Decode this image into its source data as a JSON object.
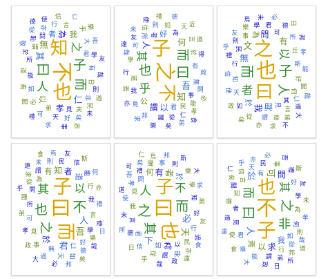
{
  "colors": {
    "page_background": "#ffffff",
    "card_background": "#ffffff",
    "card_border": "#d9d9d9",
    "palette": [
      "#1a1acc",
      "#2e8b2e",
      "#d9a300",
      "#3a6fd6",
      "#6b8e23"
    ]
  },
  "clouds": [
    {
      "id": "cloud-1",
      "words": [
        "不",
        "也",
        "知",
        "曰",
        "子",
        "而",
        "人",
        "之",
        "其",
        "無",
        "仁",
        "孝",
        "以",
        "為",
        "者",
        "我",
        "君",
        "見",
        "弟",
        "能",
        "有",
        "日",
        "如",
        "所",
        "謂",
        "問",
        "非",
        "夫",
        "大",
        "天",
        "言",
        "學",
        "好",
        "必",
        "行",
        "則",
        "道",
        "恥",
        "亦",
        "民",
        "可",
        "於",
        "乎",
        "哉",
        "矣",
        "焉",
        "吾",
        "事",
        "信",
        "友",
        "求",
        "聞",
        "從",
        "使",
        "過",
        "未",
        "亡",
        "忠",
        "敬",
        "禮",
        "樂",
        "德"
      ]
    },
    {
      "id": "cloud-2",
      "words": [
        "之",
        "子",
        "不",
        "曰",
        "也",
        "而",
        "乎",
        "其",
        "吾",
        "知",
        "以",
        "人",
        "何",
        "謂",
        "好",
        "公",
        "君",
        "者",
        "道",
        "為",
        "有",
        "於",
        "無",
        "事",
        "民",
        "我",
        "所",
        "學",
        "可",
        "聞",
        "如",
        "從",
        "則",
        "言",
        "見",
        "行",
        "能",
        "仁",
        "邦",
        "信",
        "問",
        "友",
        "天",
        "得",
        "政",
        "焉",
        "哉",
        "矣",
        "禮",
        "樂",
        "德",
        "孝",
        "弟",
        "使",
        "過",
        "亦",
        "未",
        "必",
        "求",
        "遠",
        "近",
        "食"
      ]
    },
    {
      "id": "cloud-3",
      "words": [
        "也",
        "之",
        "曰",
        "子",
        "而",
        "人",
        "以",
        "者",
        "無",
        "文",
        "與",
        "問",
        "有",
        "我",
        "於",
        "為",
        "見",
        "其",
        "何",
        "可",
        "斯",
        "好",
        "知",
        "行",
        "丘",
        "民",
        "天",
        "事",
        "謂",
        "君",
        "言",
        "學",
        "仁",
        "道",
        "所",
        "如",
        "從",
        "則",
        "能",
        "聞",
        "信",
        "禮",
        "樂",
        "德",
        "孝",
        "弟",
        "使",
        "過",
        "亦",
        "未",
        "必",
        "求",
        "友",
        "邦",
        "政",
        "焉",
        "哉",
        "矣",
        "乎",
        "不",
        "日",
        "大"
      ]
    },
    {
      "id": "cloud-4",
      "words": [
        "曰",
        "子",
        "而",
        "不",
        "也",
        "之",
        "其",
        "以",
        "人",
        "吾",
        "君",
        "於",
        "知",
        "者",
        "道",
        "有",
        "仁",
        "所",
        "為",
        "我",
        "無",
        "見",
        "可",
        "問",
        "言",
        "學",
        "好",
        "行",
        "天",
        "民",
        "事",
        "謂",
        "如",
        "從",
        "則",
        "能",
        "聞",
        "信",
        "禮",
        "樂",
        "德",
        "孝",
        "弟",
        "使",
        "過",
        "亦",
        "未",
        "必",
        "求",
        "友",
        "邦",
        "政",
        "焉",
        "哉",
        "矣",
        "乎",
        "何",
        "斯",
        "日",
        "大",
        "食",
        "遠"
      ]
    },
    {
      "id": "cloud-5",
      "words": [
        "曰",
        "也",
        "子",
        "之",
        "而",
        "其",
        "人",
        "不",
        "必",
        "天",
        "下",
        "有",
        "者",
        "為",
        "於",
        "何",
        "如",
        "以",
        "我",
        "知",
        "君",
        "見",
        "問",
        "言",
        "學",
        "好",
        "行",
        "民",
        "事",
        "謂",
        "從",
        "則",
        "能",
        "聞",
        "信",
        "禮",
        "樂",
        "德",
        "孝",
        "弟",
        "使",
        "過",
        "亦",
        "未",
        "求",
        "友",
        "邦",
        "政",
        "焉",
        "哉",
        "矣",
        "乎",
        "吾",
        "斯",
        "日",
        "大",
        "食",
        "遠",
        "所",
        "道",
        "仁",
        "可"
      ]
    },
    {
      "id": "cloud-6",
      "words": [
        "不",
        "子",
        "也",
        "曰",
        "之",
        "非",
        "而",
        "其",
        "人",
        "可",
        "於",
        "求",
        "以",
        "問",
        "我",
        "焉",
        "有",
        "者",
        "為",
        "何",
        "如",
        "知",
        "君",
        "見",
        "言",
        "學",
        "好",
        "行",
        "天",
        "民",
        "事",
        "謂",
        "從",
        "則",
        "能",
        "聞",
        "信",
        "禮",
        "樂",
        "德",
        "孝",
        "弟",
        "使",
        "過",
        "亦",
        "未",
        "必",
        "友",
        "邦",
        "政",
        "哉",
        "矣",
        "乎",
        "吾",
        "斯",
        "日",
        "大",
        "食",
        "遠",
        "所",
        "道",
        "仁"
      ]
    }
  ]
}
